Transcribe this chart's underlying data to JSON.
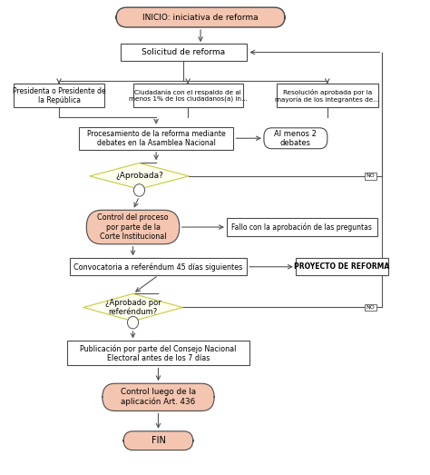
{
  "bg_color": "#ffffff",
  "box_facecolor": "#ffffff",
  "box_edgecolor": "#4a4a4a",
  "start_end_facecolor": "#f4c5b0",
  "start_end_edgecolor": "#4a4a4a",
  "decision_facecolor": "#fffff0",
  "decision_edgecolor": "#c8c840",
  "arrow_color": "#555555",
  "inicio_text": "INICIO: iniciativa de reforma",
  "solicitud_text": "Solicitud de reforma",
  "pres_text": "Presidenta o Presidente de\nla República",
  "ciu_text": "Ciudadanía con el respaldo de al\nmenos 1% de los ciudadanos(a) in...",
  "res_text": "Resolución aprobada por la\nmayoría de los integrantes de...",
  "proc_text": "Procesamiento de la reforma mediante\ndebates en la Asamblea Nacional",
  "alm_text": "Al menos 2\ndebates",
  "aprob_text": "¿Aprobada?",
  "ctrl_text": "Control del proceso\npor parte de la\nCorte Institucional",
  "fallo_text": "Fallo con la aprobación de las preguntas",
  "conv_text": "Convocatoria a referéndum 45 días siguientes",
  "proy_text": "PROYECTO DE REFORMA",
  "aref_text": "¿Aprobado por\nreferéndum?",
  "pub_text": "Publicación por parte del Consejo Nacional\nElectoral antes de los 7 días",
  "ctrl2_text": "Control luego de la\naplicación Art. 436",
  "fin_text": "FIN",
  "no_label": "NO"
}
